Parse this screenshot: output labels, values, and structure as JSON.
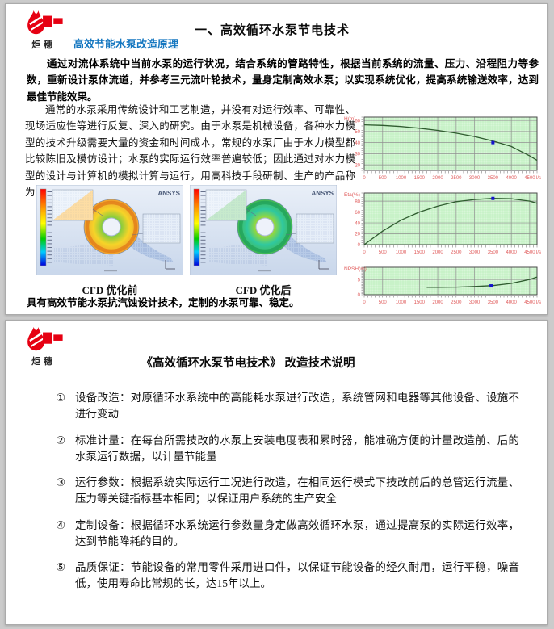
{
  "logo": {
    "text": "炬穗"
  },
  "page1": {
    "title": "一、高效循环水泵节电技术",
    "subtitle": "高效节能水泵改造原理",
    "para1": "通过对流体系统中当前水泵的运行状况，结合系统的管路特性，根据当前系统的流量、压力、沿程阻力等参数，重新设计泵体流道，并参考三元流叶轮技术，量身定制高效水泵；以实现系统优化，提高系统输送效率，达到最佳节能效果。",
    "para2": "通常的水泵采用传统设计和工艺制造，并没有对运行效率、可靠性、现场适应性等进行反复、深入的研究。由于水泵是机械设备，各种水力模型的技术升级需要大量的资金和时间成本，常规的水泵厂由于水力模型都比较陈旧及模仿设计；水泵的实际运行效率普遍较低；因此通过对水力模型的设计与计算机的模拟计算与运行，用高科技手段研制、生产的产品称为高效节能水泵。",
    "ansys_label": "ANSYS",
    "cfd_before_caption": "CFD 优化前",
    "cfd_after_caption": "CFD 优化后",
    "bottom_note": "具有高效节能水泵抗汽蚀设计技术，定制的水泵可靠、稳定。"
  },
  "page2": {
    "title": "《高效循环水泵节电技术》 改造技术说明",
    "items": [
      {
        "num": "①",
        "text": "设备改造：对原循环水系统中的高能耗水泵进行改造，系统管网和电器等其他设备、设施不进行变动"
      },
      {
        "num": "②",
        "text": "标准计量：在每台所需技改的水泵上安装电度表和累时器，能准确方便的计量改造前、后的水泵运行数据，以计量节能量"
      },
      {
        "num": "③",
        "text": "运行参数：根据系统实际运行工况进行改造，在相同运行模式下技改前后的总管运行流量、压力等关键指标基本相同；以保证用户系统的生产安全"
      },
      {
        "num": "④",
        "text": "定制设备：根据循环水系统运行参数量身定做高效循环水泵，通过提高泵的实际运行效率，达到节能降耗的目的。"
      },
      {
        "num": "⑤",
        "text": "品质保证：节能设备的常用零件采用进口件，以保证节能设备的经久耐用，运行平稳，噪音低，使用寿命比常规的长，达15年以上。"
      }
    ]
  },
  "chart_data": [
    {
      "type": "line",
      "name": "pump-head-curve",
      "ylabel": "H(m)",
      "x_unit": "l/s",
      "xlim": [
        0,
        4700
      ],
      "ylim": [
        15,
        63
      ],
      "xticks": [
        0,
        500,
        1000,
        1500,
        2000,
        2500,
        3000,
        3500,
        4000,
        4500
      ],
      "yticks": [
        60,
        50,
        40,
        30,
        20
      ],
      "x": [
        0,
        500,
        1000,
        1500,
        2000,
        2500,
        3000,
        3500,
        4000,
        4500,
        4700
      ],
      "y": [
        56,
        55.5,
        54.5,
        53,
        51,
        48.5,
        45.5,
        41.5,
        36.5,
        28,
        24
      ],
      "marker": {
        "x": 3500,
        "y": 40
      },
      "grid": true,
      "legend": null
    },
    {
      "type": "line",
      "name": "pump-efficiency-curve",
      "ylabel": "Eta(%)",
      "x_unit": "l/s",
      "xlim": [
        0,
        4700
      ],
      "ylim": [
        0,
        95
      ],
      "xticks": [
        0,
        500,
        1000,
        1500,
        2000,
        2500,
        3000,
        3500,
        4000,
        4500
      ],
      "yticks": [
        80,
        60,
        40,
        20,
        0
      ],
      "x": [
        0,
        500,
        1000,
        1500,
        2000,
        2500,
        3000,
        3500,
        4000,
        4500,
        4700
      ],
      "y": [
        0,
        25,
        45,
        60,
        71,
        79,
        83,
        85,
        84.5,
        80,
        76
      ],
      "marker": {
        "x": 3500,
        "y": 85
      },
      "grid": true,
      "legend": null
    },
    {
      "type": "line",
      "name": "pump-npsh-curve",
      "ylabel": "NPSH(m)",
      "x_unit": "l/s",
      "xlim": [
        0,
        4700
      ],
      "ylim": [
        0,
        9
      ],
      "xticks": [
        0,
        500,
        1000,
        1500,
        2000,
        2500,
        3000,
        3500,
        4000,
        4500
      ],
      "yticks": [
        5,
        0
      ],
      "x": [
        1700,
        2000,
        2500,
        3000,
        3500,
        4000,
        4500,
        4700
      ],
      "y": [
        2.4,
        2.4,
        2.5,
        2.7,
        3.0,
        3.7,
        5.0,
        5.8
      ],
      "marker": {
        "x": 3450,
        "y": 2.9
      },
      "grid": true,
      "legend": null
    }
  ],
  "colors": {
    "logo_red": "#e60012",
    "subtitle_blue": "#1577c0",
    "chart_bg": "#d8f6d8",
    "chart_mesh": "#b4ecb4",
    "chart_major_grid": "#8f8f8f",
    "chart_tick_text": "#e05a5a",
    "curve": "#2f5c2f",
    "marker_blue": "#1414cc"
  }
}
